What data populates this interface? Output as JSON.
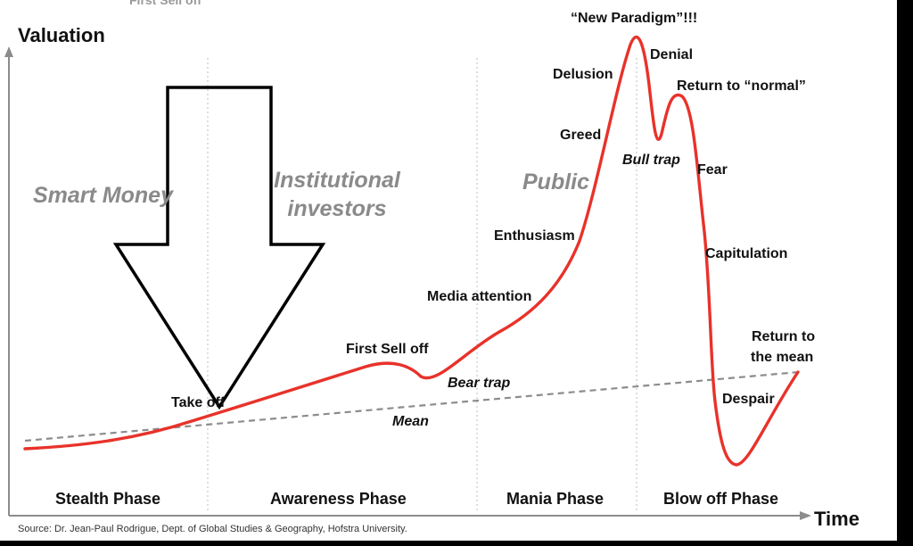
{
  "axes": {
    "y_title": "Valuation",
    "x_title": "Time"
  },
  "cut_text": "First Sell off",
  "groups": {
    "smart_money": "Smart Money",
    "institutional": "Institutional investors",
    "public": "Public"
  },
  "labels": {
    "new_paradigm": "“New Paradigm”!!!",
    "denial": "Denial",
    "delusion": "Delusion",
    "return_normal": "Return to “normal”",
    "greed": "Greed",
    "bull_trap": "Bull trap",
    "fear": "Fear",
    "enthusiasm": "Enthusiasm",
    "capitulation": "Capitulation",
    "media_attention": "Media attention",
    "first_sell_off": "First Sell off",
    "return_mean_line1": "Return to",
    "return_mean_line2": "the mean",
    "bear_trap": "Bear trap",
    "take_off": "Take off",
    "despair": "Despair",
    "mean": "Mean"
  },
  "phases": [
    "Stealth Phase",
    "Awareness Phase",
    "Mania Phase",
    "Blow off Phase"
  ],
  "source": "Source: Dr. Jean-Paul Rodrigue, Dept. of Global Studies & Geography, Hofstra University.",
  "colors": {
    "curve": "#e8322a",
    "mean_line": "#8c8c8c",
    "group_text": "#8a8a8a",
    "arrow": "#000000"
  }
}
